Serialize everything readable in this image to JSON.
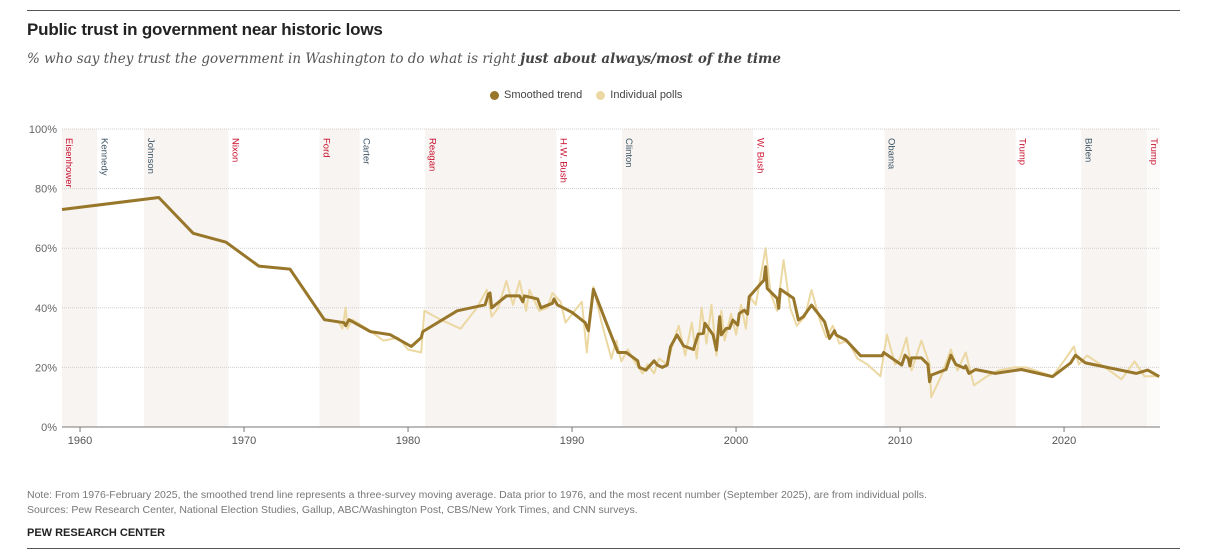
{
  "title": "Public trust in government near historic lows",
  "subtitle_regular": "% who say they trust the government in Washington to do what is right ",
  "subtitle_bold": "just about always/most of the time",
  "note": "Note: From 1976-February 2025, the smoothed trend line represents a three-survey moving average. Data prior to 1976, and the most recent number (September 2025), are from individual polls.",
  "sources": "Sources: Pew Research Center, National Election Studies, Gallup, ABC/Washington Post, CBS/New York Times, and CNN surveys.",
  "brand": "PEW RESEARCH CENTER",
  "chart_data": {
    "type": "line",
    "title": "Public trust in government near historic lows",
    "xlim": [
      1958.9,
      2025.85
    ],
    "ylim": [
      0,
      100
    ],
    "x_ticks": [
      1960,
      1970,
      1980,
      1990,
      2000,
      2010,
      2020
    ],
    "x_tick_labels": [
      "1960",
      "1970",
      "1980",
      "1990",
      "2000",
      "2010",
      "2020"
    ],
    "y_ticks": [
      0,
      20,
      40,
      60,
      80,
      100
    ],
    "y_tick_labels": [
      "0%",
      "20%",
      "40%",
      "60%",
      "80%",
      "100%"
    ],
    "grid": "horizontal dotted",
    "legend_position": "top-center",
    "colors": {
      "smoothed": "#98772b",
      "polls": "#ecd8a2",
      "term_shade": "#f7f4f1",
      "republican": "#c8102e",
      "democrat": "#3d5566"
    },
    "presidents": [
      {
        "name": "Eisenhower",
        "start": 1953.05,
        "party": "R",
        "shaded": true
      },
      {
        "name": "Kennedy",
        "start": 1961.05,
        "party": "D",
        "shaded": false
      },
      {
        "name": "Johnson",
        "start": 1963.9,
        "party": "D",
        "shaded": true
      },
      {
        "name": "Nixon",
        "start": 1969.05,
        "party": "R",
        "shaded": false
      },
      {
        "name": "Ford",
        "start": 1974.6,
        "party": "R",
        "shaded": true
      },
      {
        "name": "Carter",
        "start": 1977.05,
        "party": "D",
        "shaded": false
      },
      {
        "name": "Reagan",
        "start": 1981.05,
        "party": "R",
        "shaded": true
      },
      {
        "name": "H.W. Bush",
        "start": 1989.05,
        "party": "R",
        "shaded": false
      },
      {
        "name": "Clinton",
        "start": 1993.05,
        "party": "D",
        "shaded": true
      },
      {
        "name": "W. Bush",
        "start": 2001.05,
        "party": "R",
        "shaded": false
      },
      {
        "name": "Obama",
        "start": 2009.05,
        "party": "D",
        "shaded": true
      },
      {
        "name": "Trump",
        "start": 2017.05,
        "party": "R",
        "shaded": false
      },
      {
        "name": "Biden",
        "start": 2021.05,
        "party": "D",
        "shaded": true
      },
      {
        "name": "Trump",
        "start": 2025.05,
        "party": "R",
        "shaded": false
      }
    ],
    "series": [
      {
        "name": "Individual polls",
        "points": [
          [
            1974.9,
            36
          ],
          [
            1975.8,
            35
          ],
          [
            1976.0,
            33
          ],
          [
            1976.2,
            40
          ],
          [
            1976.3,
            33
          ],
          [
            1976.6,
            36
          ],
          [
            1977.5,
            33
          ],
          [
            1978.5,
            29
          ],
          [
            1979.4,
            30
          ],
          [
            1980.0,
            26
          ],
          [
            1980.8,
            25
          ],
          [
            1981.0,
            39
          ],
          [
            1982.0,
            36
          ],
          [
            1983.2,
            33
          ],
          [
            1984.2,
            40
          ],
          [
            1984.8,
            46
          ],
          [
            1985.1,
            37
          ],
          [
            1985.5,
            40
          ],
          [
            1986.0,
            49
          ],
          [
            1986.4,
            41
          ],
          [
            1986.8,
            49
          ],
          [
            1987.2,
            39
          ],
          [
            1987.4,
            46
          ],
          [
            1988.0,
            39
          ],
          [
            1988.5,
            40
          ],
          [
            1988.8,
            45
          ],
          [
            1989.3,
            42
          ],
          [
            1989.6,
            35
          ],
          [
            1990.3,
            40
          ],
          [
            1990.6,
            42
          ],
          [
            1990.9,
            25
          ],
          [
            1991.3,
            47
          ],
          [
            1991.8,
            35
          ],
          [
            1992.4,
            23
          ],
          [
            1992.7,
            29
          ],
          [
            1993.0,
            22
          ],
          [
            1993.4,
            26
          ],
          [
            1993.8,
            22
          ],
          [
            1994.3,
            18
          ],
          [
            1994.6,
            21
          ],
          [
            1995.0,
            18
          ],
          [
            1995.3,
            23
          ],
          [
            1995.8,
            21
          ],
          [
            1996.2,
            29
          ],
          [
            1996.5,
            34
          ],
          [
            1996.9,
            24
          ],
          [
            1997.3,
            35
          ],
          [
            1997.6,
            23
          ],
          [
            1997.9,
            40
          ],
          [
            1998.2,
            28
          ],
          [
            1998.5,
            41
          ],
          [
            1998.8,
            24
          ],
          [
            1999.1,
            39
          ],
          [
            1999.3,
            29
          ],
          [
            1999.7,
            38
          ],
          [
            2000.0,
            31
          ],
          [
            2000.3,
            41
          ],
          [
            2000.6,
            33
          ],
          [
            2000.8,
            44
          ],
          [
            2001.2,
            41
          ],
          [
            2001.8,
            60
          ],
          [
            2002.1,
            45
          ],
          [
            2002.5,
            39
          ],
          [
            2002.9,
            56
          ],
          [
            2003.3,
            40
          ],
          [
            2003.7,
            34
          ],
          [
            2004.2,
            37
          ],
          [
            2004.6,
            46
          ],
          [
            2005.1,
            36
          ],
          [
            2005.5,
            30
          ],
          [
            2005.9,
            34
          ],
          [
            2006.3,
            28
          ],
          [
            2006.8,
            29
          ],
          [
            2007.4,
            23
          ],
          [
            2008.0,
            21
          ],
          [
            2008.8,
            17
          ],
          [
            2009.2,
            31
          ],
          [
            2009.7,
            21
          ],
          [
            2010.0,
            23
          ],
          [
            2010.4,
            30
          ],
          [
            2010.7,
            19
          ],
          [
            2011.3,
            29
          ],
          [
            2011.8,
            21
          ],
          [
            2011.9,
            10
          ],
          [
            2012.5,
            17
          ],
          [
            2013.1,
            26
          ],
          [
            2013.5,
            19
          ],
          [
            2014.0,
            25
          ],
          [
            2014.5,
            14
          ],
          [
            2015.3,
            17
          ],
          [
            2016.0,
            19
          ],
          [
            2017.0,
            20
          ],
          [
            2017.7,
            20
          ],
          [
            2019.3,
            17
          ],
          [
            2020.1,
            23
          ],
          [
            2020.6,
            27
          ],
          [
            2020.9,
            21
          ],
          [
            2021.4,
            24
          ],
          [
            2022.5,
            20
          ],
          [
            2023.5,
            16
          ],
          [
            2024.3,
            22
          ],
          [
            2024.9,
            17
          ],
          [
            2025.8,
            17
          ]
        ]
      },
      {
        "name": "Smoothed trend",
        "points": [
          [
            1958.9,
            73
          ],
          [
            1964.8,
            77
          ],
          [
            1966.9,
            65
          ],
          [
            1968.9,
            62
          ],
          [
            1970.9,
            54
          ],
          [
            1972.8,
            53
          ],
          [
            1974.9,
            36
          ],
          [
            1976.1,
            35
          ],
          [
            1976.2,
            34
          ],
          [
            1976.4,
            36
          ],
          [
            1977.7,
            32
          ],
          [
            1978.9,
            31
          ],
          [
            1980.2,
            27
          ],
          [
            1980.8,
            30
          ],
          [
            1980.9,
            32
          ],
          [
            1983.0,
            39
          ],
          [
            1984.7,
            41
          ],
          [
            1984.9,
            44.6
          ],
          [
            1985.0,
            45
          ],
          [
            1985.1,
            40
          ],
          [
            1986.0,
            44
          ],
          [
            1986.8,
            44
          ],
          [
            1987.0,
            42
          ],
          [
            1987.1,
            44
          ],
          [
            1987.9,
            43
          ],
          [
            1988.1,
            40
          ],
          [
            1988.8,
            41.5
          ],
          [
            1988.9,
            43
          ],
          [
            1989.1,
            41
          ],
          [
            1990.0,
            38.5
          ],
          [
            1990.8,
            35
          ],
          [
            1991.0,
            32.3
          ],
          [
            1991.3,
            46.2
          ],
          [
            1992.1,
            34.8
          ],
          [
            1992.8,
            25
          ],
          [
            1993.3,
            25
          ],
          [
            1994.0,
            22.2
          ],
          [
            1994.1,
            20
          ],
          [
            1994.5,
            19.1
          ],
          [
            1995.0,
            22.2
          ],
          [
            1995.2,
            20.8
          ],
          [
            1995.5,
            20
          ],
          [
            1995.8,
            20.8
          ],
          [
            1996.0,
            26.9
          ],
          [
            1996.4,
            30.9
          ],
          [
            1996.8,
            27.2
          ],
          [
            1997.4,
            26
          ],
          [
            1997.7,
            31.2
          ],
          [
            1998.0,
            31.4
          ],
          [
            1998.1,
            34.8
          ],
          [
            1998.6,
            30.9
          ],
          [
            1998.8,
            25.8
          ],
          [
            1999.0,
            37
          ],
          [
            1999.1,
            30.9
          ],
          [
            1999.4,
            33.1
          ],
          [
            1999.6,
            33.1
          ],
          [
            1999.8,
            35.9
          ],
          [
            2000.1,
            34.2
          ],
          [
            2000.2,
            38.1
          ],
          [
            2000.5,
            39.2
          ],
          [
            2000.7,
            37.9
          ],
          [
            2000.8,
            43.7
          ],
          [
            2001.7,
            49.3
          ],
          [
            2001.8,
            53.8
          ],
          [
            2001.9,
            46.5
          ],
          [
            2002.5,
            43.2
          ],
          [
            2002.6,
            39.8
          ],
          [
            2002.7,
            46.2
          ],
          [
            2003.5,
            43.2
          ],
          [
            2003.8,
            35.9
          ],
          [
            2004.1,
            37
          ],
          [
            2004.6,
            40.9
          ],
          [
            2005.4,
            35.3
          ],
          [
            2005.7,
            29.7
          ],
          [
            2006.0,
            32.3
          ],
          [
            2006.1,
            30.9
          ],
          [
            2006.7,
            29.2
          ],
          [
            2007.6,
            23.9
          ],
          [
            2008.9,
            23.9
          ],
          [
            2009.0,
            25
          ],
          [
            2010.1,
            20.8
          ],
          [
            2010.3,
            24.1
          ],
          [
            2010.5,
            23
          ],
          [
            2010.6,
            20.5
          ],
          [
            2010.7,
            23.2
          ],
          [
            2011.3,
            23.2
          ],
          [
            2011.7,
            21
          ],
          [
            2011.8,
            15.2
          ],
          [
            2011.9,
            17.4
          ],
          [
            2012.8,
            19.3
          ],
          [
            2013.1,
            24.1
          ],
          [
            2013.4,
            21
          ],
          [
            2013.9,
            19.8
          ],
          [
            2014.0,
            20.5
          ],
          [
            2014.2,
            18
          ],
          [
            2014.6,
            19.3
          ],
          [
            2015.8,
            18
          ],
          [
            2017.4,
            19.3
          ],
          [
            2019.3,
            16.9
          ],
          [
            2020.4,
            21.5
          ],
          [
            2020.7,
            24.1
          ],
          [
            2021.3,
            21.5
          ],
          [
            2024.4,
            18
          ],
          [
            2025.1,
            19.1
          ],
          [
            2025.8,
            16.9
          ]
        ]
      }
    ],
    "legend": [
      "Smoothed trend",
      "Individual polls"
    ]
  }
}
